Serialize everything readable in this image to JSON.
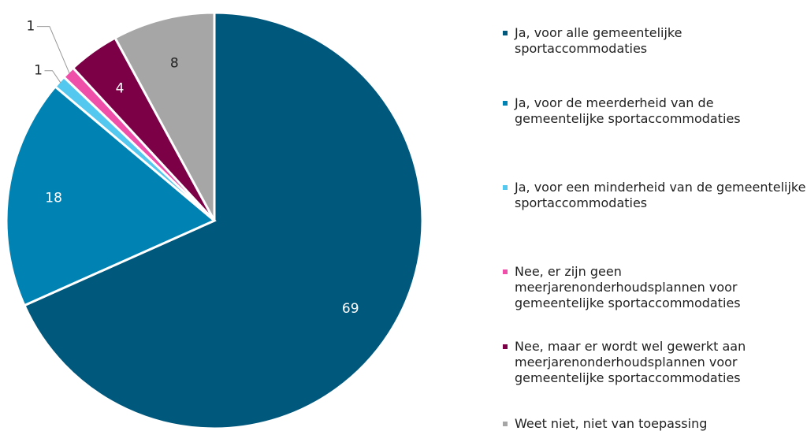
{
  "chart_data": {
    "type": "pie",
    "categories": [
      "Ja, voor alle gemeentelijke sportaccommodaties",
      "Ja, voor de meerderheid van de gemeentelijke sportaccommodaties",
      "Ja, voor een minderheid van de gemeentelijke sportaccommodaties",
      "Nee, er zijn geen meerjarenonderhoudsplannen voor gemeentelijke sportaccommodaties",
      "Nee, maar er wordt wel gewerkt aan meerjarenonderhoudsplannen voor gemeentelijke sportaccommodaties",
      "Weet niet, niet van toepassing"
    ],
    "values": [
      69,
      18,
      1,
      1,
      4,
      8
    ],
    "colors": [
      "#00587c",
      "#0082b3",
      "#55c8ef",
      "#f04fa9",
      "#7b0045",
      "#a6a6a6"
    ],
    "legend": "right"
  }
}
